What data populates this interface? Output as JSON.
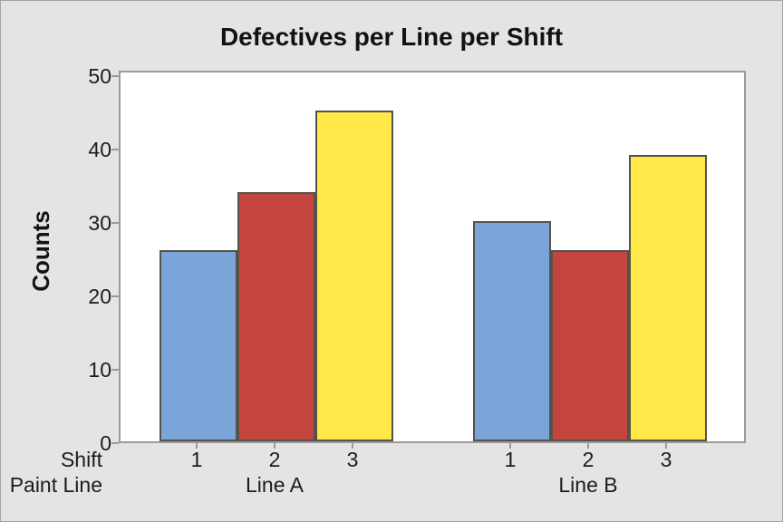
{
  "chart_data": {
    "type": "bar",
    "title": "Defectives per Line per Shift",
    "ylabel": "Counts",
    "xlabel": "",
    "x_axis_rows": {
      "shift_label": "Shift",
      "group_label": "Paint Line"
    },
    "y_ticks": [
      0,
      10,
      20,
      30,
      40,
      50
    ],
    "ylim": [
      0,
      50
    ],
    "grid": false,
    "legend": "none",
    "groups": [
      {
        "label": "Line A",
        "bars": [
          {
            "shift": "1",
            "value": 26,
            "color": "#7BA4D8"
          },
          {
            "shift": "2",
            "value": 34,
            "color": "#C4453F"
          },
          {
            "shift": "3",
            "value": 45,
            "color": "#FFE847"
          }
        ]
      },
      {
        "label": "Line B",
        "bars": [
          {
            "shift": "1",
            "value": 30,
            "color": "#7BA4D8"
          },
          {
            "shift": "2",
            "value": 26,
            "color": "#C4453F"
          },
          {
            "shift": "3",
            "value": 39,
            "color": "#FFE847"
          }
        ]
      }
    ],
    "styles": {
      "bar_border": "#55524A",
      "frame": "#9B9B9B",
      "plot_bg": "#FFFFFF",
      "canvas_bg": "#E4E4E4",
      "text": "#1C1C1C"
    }
  }
}
